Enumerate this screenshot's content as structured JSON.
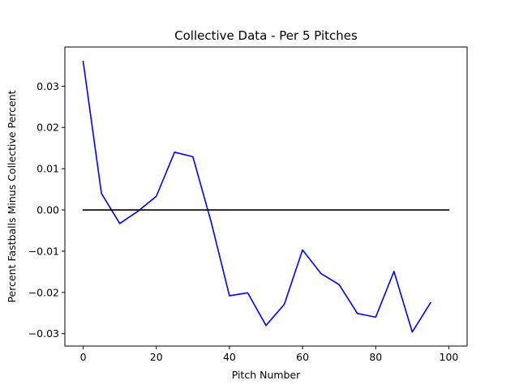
{
  "chart_data": {
    "type": "line",
    "title": "Collective Data - Per 5 Pitches",
    "xlabel": "Pitch Number",
    "ylabel": "Percent Fastballs Minus Collective Percent",
    "xlim": [
      -5,
      105
    ],
    "ylim": [
      -0.033,
      0.0395
    ],
    "x_ticks": [
      0,
      20,
      40,
      60,
      80,
      100
    ],
    "y_ticks": [
      -0.03,
      -0.02,
      -0.01,
      0.0,
      0.01,
      0.02,
      0.03
    ],
    "x_tick_labels": [
      "0",
      "20",
      "40",
      "60",
      "80",
      "100"
    ],
    "y_tick_labels": [
      "−0.03",
      "−0.02",
      "−0.01",
      "0.00",
      "0.01",
      "0.02",
      "0.03"
    ],
    "grid": false,
    "series": [
      {
        "color": "#0000ff",
        "x": [
          0,
          5,
          10,
          15,
          20,
          25,
          30,
          35,
          40,
          45,
          50,
          55,
          60,
          65,
          70,
          75,
          80,
          85,
          90,
          95
        ],
        "y": [
          0.036,
          0.004,
          -0.0033,
          -0.0003,
          0.0033,
          0.014,
          0.0129,
          -0.0029,
          -0.0208,
          -0.0201,
          -0.028,
          -0.0229,
          -0.0097,
          -0.0154,
          -0.0181,
          -0.0251,
          -0.026,
          -0.0149,
          -0.0296,
          -0.0225
        ]
      },
      {
        "color": "#000000",
        "x": [
          0,
          100
        ],
        "y": [
          0,
          0
        ]
      }
    ]
  }
}
